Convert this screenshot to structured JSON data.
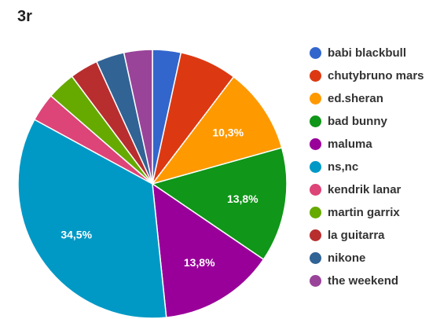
{
  "chart_data": {
    "type": "pie",
    "title": "3r",
    "series": [
      {
        "name": "babi blackbull",
        "value": 3.4,
        "label": "",
        "color": "#3366cc"
      },
      {
        "name": "chutybruno mars",
        "value": 6.9,
        "label": "",
        "color": "#dc3912"
      },
      {
        "name": "ed.sheran",
        "value": 10.3,
        "label": "10,3%",
        "color": "#ff9900"
      },
      {
        "name": "bad bunny",
        "value": 13.8,
        "label": "13,8%",
        "color": "#109618"
      },
      {
        "name": "maluma",
        "value": 13.8,
        "label": "13,8%",
        "color": "#990099"
      },
      {
        "name": "ns,nc",
        "value": 34.5,
        "label": "34,5%",
        "color": "#0099c6"
      },
      {
        "name": "kendrik lanar",
        "value": 3.4,
        "label": "",
        "color": "#dd4477"
      },
      {
        "name": "martin garrix",
        "value": 3.4,
        "label": "",
        "color": "#66aa00"
      },
      {
        "name": "la guitarra",
        "value": 3.4,
        "label": "",
        "color": "#b82e2e"
      },
      {
        "name": "nikone",
        "value": 3.4,
        "label": "",
        "color": "#316395"
      },
      {
        "name": "the weekend",
        "value": 3.4,
        "label": "",
        "color": "#994499"
      }
    ],
    "legend_position": "right"
  }
}
